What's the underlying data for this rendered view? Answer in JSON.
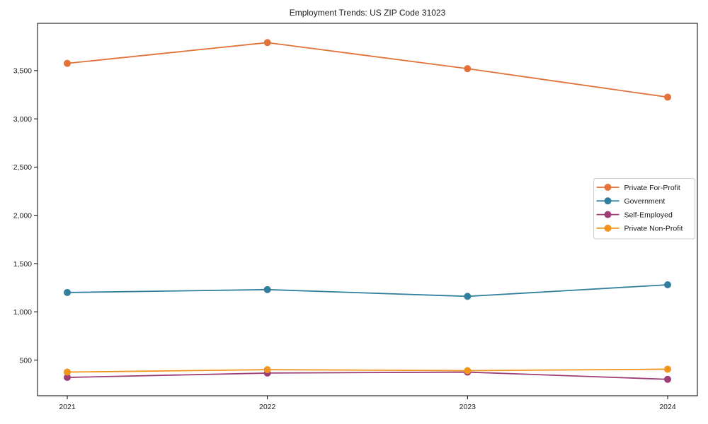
{
  "figure": {
    "title": "Employment Trends: US ZIP Code 31023"
  },
  "chart_data": {
    "type": "line",
    "title": "Employment Trends: US ZIP Code 31023",
    "xlabel": "",
    "ylabel": "",
    "x_categories": [
      "2021",
      "2022",
      "2023",
      "2024"
    ],
    "series": [
      {
        "name": "Private For-Profit",
        "color": "#E2713A",
        "values": [
          3575,
          3790,
          3520,
          3225
        ]
      },
      {
        "name": "Government",
        "color": "#317E9D",
        "values": [
          1200,
          1230,
          1160,
          1280
        ]
      },
      {
        "name": "Self-Employed",
        "color": "#9E3C76",
        "values": [
          320,
          365,
          375,
          300
        ]
      },
      {
        "name": "Private Non-Profit",
        "color": "#F0941E",
        "values": [
          375,
          400,
          390,
          405
        ]
      }
    ],
    "ylim": [
      130,
      3990
    ],
    "yticks": [
      500,
      1000,
      1500,
      2000,
      2500,
      3000,
      3500
    ],
    "grid": false,
    "marker": "circle",
    "legend": {
      "position": "center-right",
      "entries": [
        "Private For-Profit",
        "Government",
        "Self-Employed",
        "Private Non-Profit"
      ]
    },
    "style": {
      "text_color": "#1a1a1a",
      "frame_color": "#000000",
      "legend_border_color": "#cccccc",
      "background": "#ffffff"
    }
  }
}
